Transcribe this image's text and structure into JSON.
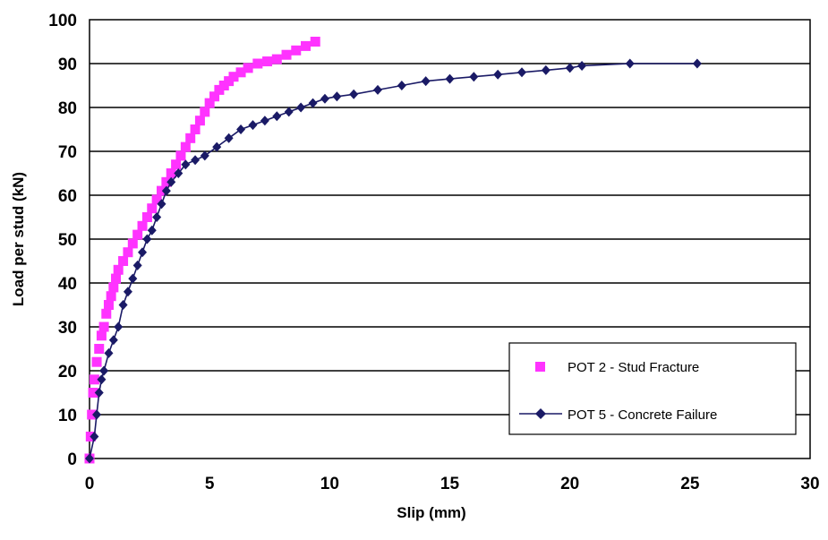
{
  "chart_data": {
    "type": "scatter",
    "xlabel": "Slip (mm)",
    "ylabel": "Load per stud (kN)",
    "xlim": [
      0,
      30
    ],
    "ylim": [
      0,
      100
    ],
    "xticks": [
      "0",
      "5",
      "10",
      "15",
      "20",
      "25",
      "30"
    ],
    "yticks": [
      "0",
      "10",
      "20",
      "30",
      "40",
      "50",
      "60",
      "70",
      "80",
      "90",
      "100"
    ],
    "grid": "horizontal",
    "legend_position": "bottom-right",
    "series": [
      {
        "name": "POT 2 - Stud Fracture",
        "color": "#ff33ff",
        "marker": "square",
        "line": false,
        "x": [
          0,
          0.05,
          0.1,
          0.15,
          0.2,
          0.3,
          0.4,
          0.5,
          0.6,
          0.7,
          0.8,
          0.9,
          1.0,
          1.1,
          1.2,
          1.4,
          1.6,
          1.8,
          2.0,
          2.2,
          2.4,
          2.6,
          2.8,
          3.0,
          3.2,
          3.4,
          3.6,
          3.8,
          4.0,
          4.2,
          4.4,
          4.6,
          4.8,
          5.0,
          5.2,
          5.4,
          5.6,
          5.8,
          6.0,
          6.3,
          6.6,
          7.0,
          7.4,
          7.8,
          8.2,
          8.6,
          9.0,
          9.4
        ],
        "y": [
          0,
          5,
          10,
          15,
          18,
          22,
          25,
          28,
          30,
          33,
          35,
          37,
          39,
          41,
          43,
          45,
          47,
          49,
          51,
          53,
          55,
          57,
          59,
          61,
          63,
          65,
          67,
          69,
          71,
          73,
          75,
          77,
          79,
          81,
          82.5,
          84,
          85,
          86,
          87,
          88,
          89,
          90,
          90.5,
          91,
          92,
          93,
          94,
          95
        ]
      },
      {
        "name": "POT 5 - Concrete Failure",
        "color": "#1a1a66",
        "marker": "diamond",
        "line": true,
        "x": [
          0,
          0.2,
          0.3,
          0.4,
          0.5,
          0.6,
          0.8,
          1.0,
          1.2,
          1.4,
          1.6,
          1.8,
          2.0,
          2.2,
          2.4,
          2.6,
          2.8,
          3.0,
          3.2,
          3.4,
          3.7,
          4.0,
          4.4,
          4.8,
          5.3,
          5.8,
          6.3,
          6.8,
          7.3,
          7.8,
          8.3,
          8.8,
          9.3,
          9.8,
          10.3,
          11.0,
          12.0,
          13.0,
          14.0,
          15.0,
          16.0,
          17.0,
          18.0,
          19.0,
          20.0,
          20.5,
          22.5,
          25.3
        ],
        "y": [
          0,
          5,
          10,
          15,
          18,
          20,
          24,
          27,
          30,
          35,
          38,
          41,
          44,
          47,
          50,
          52,
          55,
          58,
          61,
          63,
          65,
          67,
          68,
          69,
          71,
          73,
          75,
          76,
          77,
          78,
          79,
          80,
          81,
          82,
          82.5,
          83,
          84,
          85,
          86,
          86.5,
          87,
          87.5,
          88,
          88.5,
          89,
          89.5,
          90,
          90
        ]
      }
    ]
  }
}
